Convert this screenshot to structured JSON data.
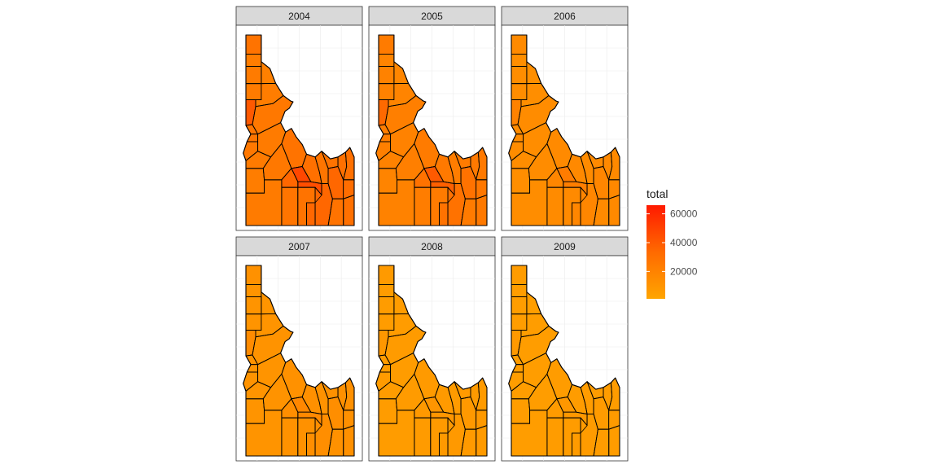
{
  "facets": [
    {
      "year": "2004",
      "level": 0.6,
      "hot": true
    },
    {
      "year": "2005",
      "level": 0.5,
      "hot": true
    },
    {
      "year": "2006",
      "level": 0.3,
      "hot": false
    },
    {
      "year": "2007",
      "level": 0.22,
      "hot": false
    },
    {
      "year": "2008",
      "level": 0.12,
      "hot": false
    },
    {
      "year": "2009",
      "level": 0.1,
      "hot": false
    }
  ],
  "legend": {
    "title": "total",
    "ticks": [
      {
        "label": "60000",
        "value": 60000
      },
      {
        "label": "40000",
        "value": 40000
      },
      {
        "label": "20000",
        "value": 20000
      }
    ],
    "min": 1000,
    "max": 66000,
    "color_low": "#ffa500",
    "color_mid": "#ff6a00",
    "color_high": "#ff1a00"
  },
  "colors": {
    "strip_fill": "#d9d9d9",
    "panel_border": "#333333",
    "grid": "#ebebeb",
    "county_border": "#000000"
  }
}
